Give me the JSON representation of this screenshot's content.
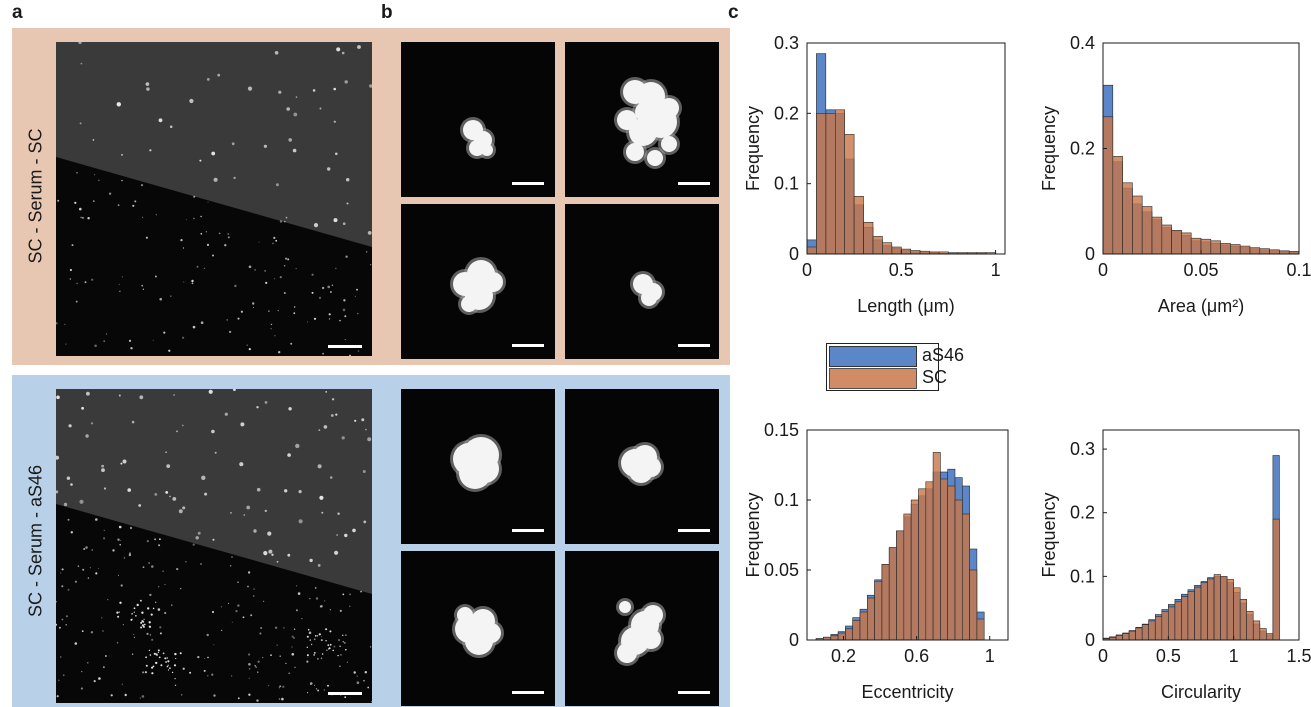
{
  "panels": {
    "a": "a",
    "b": "b",
    "c": "c"
  },
  "rows": [
    {
      "label": "SC - Serum - SC",
      "bg": "#e8c7b2"
    },
    {
      "label": "SC - Serum - aS46",
      "bg": "#b9d1e8"
    }
  ],
  "colors": {
    "aS46": "#5b86c8",
    "SC": "#c8784a",
    "image_bg": "#0a0a0a"
  },
  "legend": {
    "items": [
      "aS46",
      "SC"
    ]
  },
  "chart_data": [
    {
      "type": "bar",
      "xlabel": "Length (μm)",
      "ylabel": "Frequency",
      "xlim": [
        0,
        1.05
      ],
      "ylim": [
        0,
        0.3
      ],
      "xticks": [
        "0",
        "0.5",
        "1"
      ],
      "yticks": [
        "0",
        "0.1",
        "0.2",
        "0.3"
      ],
      "bin_start": 0,
      "bin_width": 0.05,
      "series": [
        {
          "name": "aS46",
          "values": [
            0.02,
            0.285,
            0.205,
            0.2,
            0.135,
            0.07,
            0.038,
            0.02,
            0.012,
            0.008,
            0.005,
            0.003,
            0.002,
            0.002,
            0.001,
            0.001,
            0.001,
            0.001,
            0.001,
            0.0,
            0.0
          ]
        },
        {
          "name": "SC",
          "values": [
            0.01,
            0.2,
            0.2,
            0.205,
            0.17,
            0.082,
            0.045,
            0.025,
            0.016,
            0.01,
            0.007,
            0.005,
            0.004,
            0.003,
            0.003,
            0.002,
            0.002,
            0.002,
            0.002,
            0.002,
            0.0
          ]
        }
      ]
    },
    {
      "type": "bar",
      "xlabel": "Area (μm²)",
      "ylabel": "Frequency",
      "xlim": [
        0,
        0.1
      ],
      "ylim": [
        0,
        0.4
      ],
      "xticks": [
        "0",
        "0.05",
        "0.1"
      ],
      "yticks": [
        "0",
        "0.2",
        "0.4"
      ],
      "bin_start": 0,
      "bin_width": 0.005,
      "series": [
        {
          "name": "aS46",
          "values": [
            0.32,
            0.175,
            0.125,
            0.095,
            0.08,
            0.065,
            0.05,
            0.045,
            0.035,
            0.025,
            0.023,
            0.02,
            0.017,
            0.015,
            0.012,
            0.01,
            0.008,
            0.006,
            0.005,
            0.004
          ]
        },
        {
          "name": "SC",
          "values": [
            0.26,
            0.185,
            0.135,
            0.11,
            0.09,
            0.07,
            0.055,
            0.045,
            0.04,
            0.03,
            0.028,
            0.025,
            0.02,
            0.018,
            0.015,
            0.012,
            0.01,
            0.008,
            0.006,
            0.005
          ]
        }
      ]
    },
    {
      "type": "bar",
      "xlabel": "Eccentricity",
      "ylabel": "Frequency",
      "xlim": [
        0,
        1.1
      ],
      "ylim": [
        0,
        0.15
      ],
      "xticks": [
        "0.2",
        "0.6",
        "1"
      ],
      "xtick_values": [
        0.2,
        0.6,
        1
      ],
      "yticks": [
        "0",
        "0.05",
        "0.1",
        "0.15"
      ],
      "bin_start": 0.05,
      "bin_width": 0.04,
      "series": [
        {
          "name": "aS46",
          "values": [
            0.001,
            0.002,
            0.004,
            0.006,
            0.01,
            0.016,
            0.022,
            0.032,
            0.043,
            0.054,
            0.066,
            0.078,
            0.088,
            0.097,
            0.103,
            0.108,
            0.12,
            0.12,
            0.122,
            0.116,
            0.11,
            0.065,
            0.02
          ]
        },
        {
          "name": "SC",
          "values": [
            0.001,
            0.002,
            0.003,
            0.005,
            0.008,
            0.014,
            0.02,
            0.03,
            0.042,
            0.054,
            0.066,
            0.078,
            0.09,
            0.1,
            0.108,
            0.113,
            0.134,
            0.115,
            0.11,
            0.1,
            0.09,
            0.05,
            0.015
          ]
        }
      ]
    },
    {
      "type": "bar",
      "xlabel": "Circularity",
      "ylabel": "Frequency",
      "xlim": [
        0,
        1.5
      ],
      "ylim": [
        0,
        0.33
      ],
      "xticks": [
        "0",
        "0.5",
        "1",
        "1.5"
      ],
      "yticks": [
        "0",
        "0.1",
        "0.2",
        "0.3"
      ],
      "bin_start": 0,
      "bin_width": 0.05,
      "series": [
        {
          "name": "aS46",
          "values": [
            0.003,
            0.005,
            0.008,
            0.011,
            0.015,
            0.02,
            0.025,
            0.032,
            0.04,
            0.048,
            0.056,
            0.064,
            0.072,
            0.079,
            0.086,
            0.092,
            0.098,
            0.1,
            0.099,
            0.09,
            0.075,
            0.058,
            0.04,
            0.025,
            0.014,
            0.008,
            0.29
          ]
        },
        {
          "name": "SC",
          "values": [
            0.002,
            0.004,
            0.007,
            0.01,
            0.014,
            0.019,
            0.024,
            0.03,
            0.037,
            0.045,
            0.052,
            0.06,
            0.068,
            0.076,
            0.083,
            0.09,
            0.096,
            0.103,
            0.1,
            0.095,
            0.082,
            0.064,
            0.045,
            0.03,
            0.018,
            0.01,
            0.19
          ]
        }
      ]
    }
  ]
}
